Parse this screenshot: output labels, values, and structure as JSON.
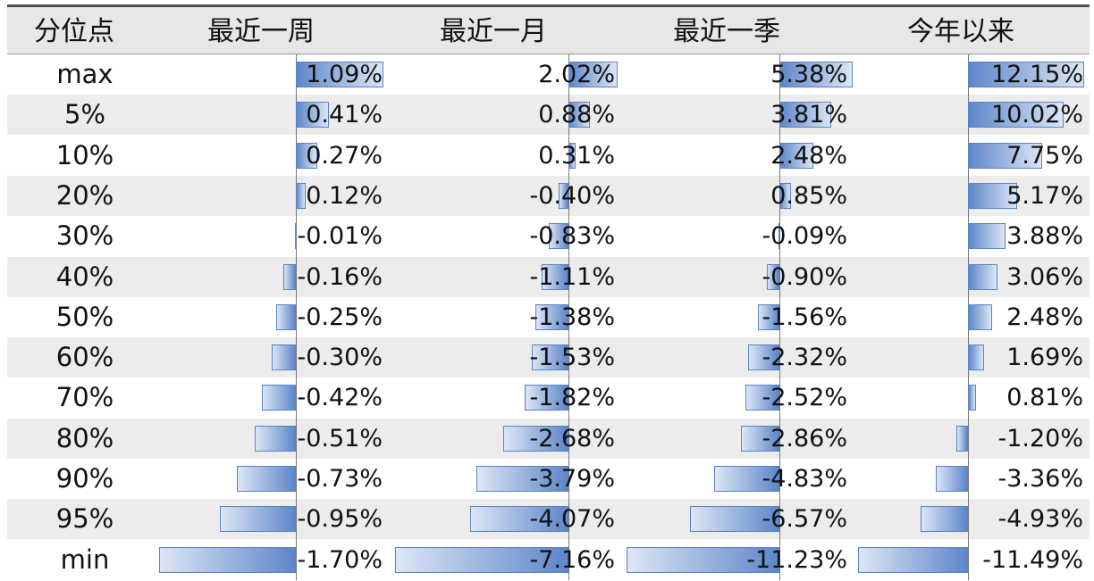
{
  "table": {
    "header": {
      "label_col": "分位点",
      "columns": [
        "最近一周",
        "最近一月",
        "最近一季",
        "今年以来"
      ]
    },
    "row_labels": [
      "max",
      "5%",
      "10%",
      "20%",
      "30%",
      "40%",
      "50%",
      "60%",
      "70%",
      "80%",
      "90%",
      "95%",
      "min"
    ]
  },
  "chart_data": {
    "type": "table",
    "title": "",
    "categories": [
      "max",
      "5%",
      "10%",
      "20%",
      "30%",
      "40%",
      "50%",
      "60%",
      "70%",
      "80%",
      "90%",
      "95%",
      "min"
    ],
    "unit": "%",
    "series": [
      {
        "name": "最近一周",
        "values": [
          1.09,
          0.41,
          0.27,
          0.12,
          -0.01,
          -0.16,
          -0.25,
          -0.3,
          -0.42,
          -0.51,
          -0.73,
          -0.95,
          -1.7
        ]
      },
      {
        "name": "最近一月",
        "values": [
          2.02,
          0.88,
          0.31,
          -0.4,
          -0.83,
          -1.11,
          -1.38,
          -1.53,
          -1.82,
          -2.68,
          -3.79,
          -4.07,
          -7.16
        ]
      },
      {
        "name": "最近一季",
        "values": [
          5.38,
          3.81,
          2.48,
          0.85,
          -0.09,
          -0.9,
          -1.56,
          -2.32,
          -2.52,
          -2.86,
          -4.83,
          -6.57,
          -11.23
        ]
      },
      {
        "name": "今年以来",
        "values": [
          12.15,
          10.02,
          7.75,
          5.17,
          3.88,
          3.06,
          2.48,
          1.69,
          0.81,
          -1.2,
          -3.36,
          -4.93,
          -11.49
        ]
      }
    ],
    "colors": {
      "bar_dark": "#5d86c9",
      "bar_light": "#dce6f5",
      "bar_border": "#5b82c4",
      "row_shade": "#ececec",
      "header_bg": "#e7e7e7"
    }
  }
}
